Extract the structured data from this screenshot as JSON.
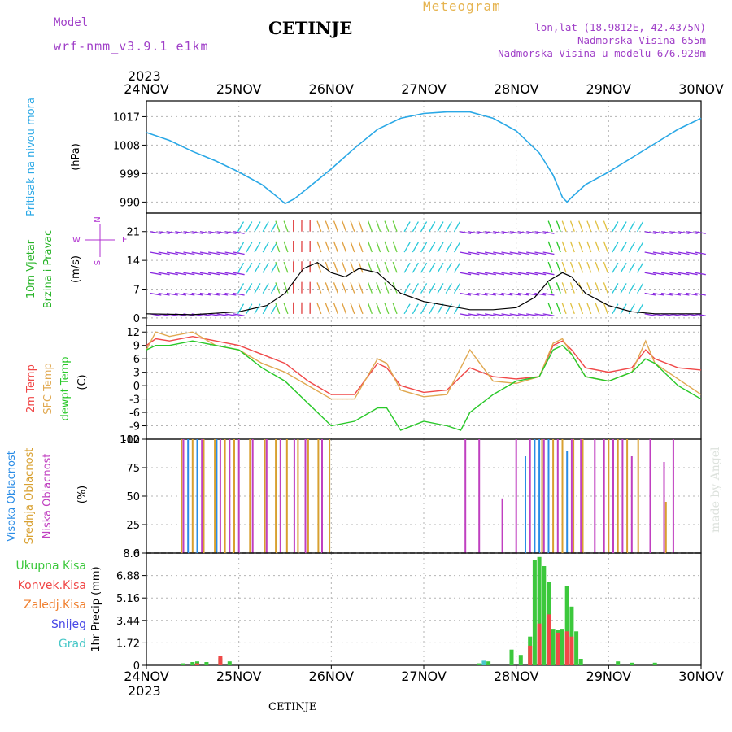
{
  "header": {
    "model_label": "Model",
    "model_run": "wrf-nmm_v3.9.1  e1km",
    "station": "CETINJE",
    "product": "Meteogram",
    "location": "lon,lat (18.9812E, 42.4375N)",
    "altitude": "Nadmorska Visina 655m",
    "model_altitude": "Nadmorska Visina u modelu 676.928m"
  },
  "footer": {
    "station": "CETINJE"
  },
  "credit": "made by Angel",
  "colors": {
    "pressure": "#2aa8e6",
    "temp2m": "#f04848",
    "sfc_temp": "#e0a850",
    "dewpt": "#28c828",
    "high_cloud": "#2a8ce6",
    "mid_cloud": "#d8a030",
    "low_cloud": "#c040c0",
    "total_precip": "#3cc83c",
    "conv_precip": "#f04848",
    "freezing": "#f08030",
    "snow": "#4848e6",
    "grad": "#48c8c8",
    "wind_label": "#28b428",
    "wind_rose": "#b030d0"
  },
  "chart_data": [
    {
      "type": "line",
      "title": "Pritisak na nivou mora",
      "ylabel": "(hPa)",
      "x_axis": {
        "year": "2023",
        "ticks": [
          "24NOV",
          "25NOV",
          "26NOV",
          "27NOV",
          "28NOV",
          "29NOV",
          "30NOV"
        ],
        "range": [
          0,
          6
        ]
      },
      "yticks": [
        990,
        999,
        1008,
        1017
      ],
      "ylim": [
        986.5,
        1022
      ],
      "grid": true,
      "series": [
        {
          "name": "Pritisak na nivou mora",
          "x": [
            0,
            0.25,
            0.5,
            0.75,
            1,
            1.25,
            1.4,
            1.5,
            1.6,
            1.75,
            2,
            2.25,
            2.5,
            2.75,
            3,
            3.25,
            3.5,
            3.75,
            4,
            4.25,
            4.4,
            4.5,
            4.55,
            4.6,
            4.75,
            5,
            5.25,
            5.5,
            5.75,
            6
          ],
          "values": [
            1012,
            1009.5,
            1006,
            1003,
            999.5,
            995.5,
            992,
            989.5,
            991,
            994.5,
            1000.5,
            1007,
            1013,
            1016.5,
            1018,
            1018.5,
            1018.5,
            1016.5,
            1012.5,
            1005.5,
            998.5,
            991.5,
            990,
            991.5,
            995.5,
            999.5,
            1004,
            1008.5,
            1013,
            1016.5
          ]
        }
      ]
    },
    {
      "type": "line",
      "title": "10m Vjetar Brzina i Pravac",
      "ylabel": "(m/s)",
      "wind_rose": {
        "n": "N",
        "s": "S",
        "e": "E",
        "w": "W"
      },
      "yticks": [
        0,
        7,
        14,
        21
      ],
      "ylim": [
        -1.8,
        25.5
      ],
      "series": [
        {
          "name": "Brzina",
          "x": [
            0,
            0.5,
            1,
            1.3,
            1.5,
            1.7,
            1.85,
            2,
            2.15,
            2.3,
            2.5,
            2.75,
            3,
            3.25,
            3.5,
            3.75,
            4,
            4.2,
            4.35,
            4.5,
            4.6,
            4.75,
            5,
            5.25,
            5.5,
            6
          ],
          "values": [
            1,
            0.8,
            1.5,
            3,
            6,
            12,
            13.5,
            11,
            10,
            12,
            11,
            6,
            4,
            3,
            2,
            2,
            2.5,
            5,
            9,
            11,
            10,
            6,
            3,
            1.5,
            1,
            1
          ]
        }
      ]
    },
    {
      "type": "line",
      "ylabel": "(C)",
      "yticks": [
        -12,
        -9,
        -6,
        -3,
        0,
        3,
        6,
        9,
        12
      ],
      "ylim": [
        -12,
        13.5
      ],
      "series": [
        {
          "name": "2m Temp",
          "x": [
            0,
            0.1,
            0.25,
            0.5,
            0.75,
            1,
            1.25,
            1.5,
            1.75,
            2,
            2.25,
            2.5,
            2.6,
            2.75,
            3,
            3.25,
            3.4,
            3.5,
            3.75,
            4,
            4.25,
            4.4,
            4.5,
            4.6,
            4.75,
            5,
            5.25,
            5.4,
            5.5,
            5.75,
            6
          ],
          "values": [
            9,
            10.5,
            10,
            11,
            10,
            9,
            7,
            5,
            1,
            -2,
            -2,
            5,
            4,
            0,
            -1.5,
            -1,
            2,
            4,
            2,
            1.5,
            2,
            9,
            10,
            8,
            4,
            3,
            4,
            8,
            6,
            4,
            3.5
          ]
        },
        {
          "name": "SFC Temp",
          "x": [
            0,
            0.1,
            0.25,
            0.5,
            0.75,
            1,
            1.25,
            1.5,
            1.75,
            2,
            2.25,
            2.5,
            2.6,
            2.75,
            3,
            3.25,
            3.4,
            3.5,
            3.75,
            4,
            4.25,
            4.4,
            4.5,
            4.6,
            4.75,
            5,
            5.25,
            5.4,
            5.5,
            5.75,
            6
          ],
          "values": [
            8,
            12,
            11,
            12,
            9,
            8,
            5,
            3,
            0,
            -3,
            -3,
            6,
            5,
            -1,
            -2.5,
            -2,
            4,
            8,
            1,
            0.5,
            2,
            9.5,
            10.5,
            7,
            2,
            1,
            3,
            10,
            5,
            1.5,
            -2
          ]
        },
        {
          "name": "dewpt Temp",
          "x": [
            0,
            0.1,
            0.25,
            0.5,
            0.75,
            1,
            1.25,
            1.5,
            1.75,
            2,
            2.25,
            2.5,
            2.6,
            2.75,
            3,
            3.25,
            3.4,
            3.5,
            3.75,
            4,
            4.25,
            4.4,
            4.5,
            4.6,
            4.75,
            5,
            5.25,
            5.4,
            5.5,
            5.75,
            6
          ],
          "values": [
            8,
            9,
            9,
            10,
            9,
            8,
            4,
            1,
            -4,
            -9,
            -8,
            -5,
            -5,
            -10,
            -8,
            -9,
            -10,
            -6,
            -2,
            1,
            2,
            8,
            9,
            7,
            2,
            1,
            3,
            6,
            5,
            0,
            -3
          ]
        }
      ]
    },
    {
      "type": "bar",
      "ylabel": "(%)",
      "yticks": [
        0,
        25,
        50,
        75,
        100
      ],
      "ylim": [
        0,
        100
      ],
      "series": [
        {
          "name": "Visoka Oblacnost",
          "x": [
            0.45,
            0.55,
            0.76,
            4.1,
            4.2,
            4.25,
            4.35,
            4.55
          ],
          "values": [
            100,
            100,
            100,
            85,
            100,
            100,
            100,
            90
          ]
        },
        {
          "name": "Srednja Oblacnost",
          "x": [
            0.38,
            0.5,
            0.62,
            0.74,
            0.85,
            0.95,
            1.12,
            1.28,
            1.4,
            1.52,
            1.64,
            1.75,
            1.86,
            1.98,
            4.28,
            4.4,
            4.5,
            4.62,
            4.72,
            5.0,
            5.1,
            5.2,
            5.32,
            5.62
          ],
          "values": [
            100,
            100,
            100,
            100,
            100,
            100,
            100,
            100,
            100,
            100,
            100,
            100,
            100,
            100,
            100,
            100,
            100,
            100,
            100,
            100,
            100,
            100,
            100,
            45
          ]
        },
        {
          "name": "Niska Oblacnost",
          "x": [
            0.4,
            0.6,
            0.8,
            0.9,
            1.0,
            1.15,
            1.3,
            1.45,
            1.6,
            1.72,
            1.9,
            3.45,
            3.6,
            3.85,
            4.0,
            4.15,
            4.3,
            4.45,
            4.6,
            4.7,
            4.85,
            4.95,
            5.05,
            5.15,
            5.25,
            5.45,
            5.6,
            5.7
          ],
          "values": [
            100,
            100,
            100,
            100,
            100,
            100,
            100,
            100,
            100,
            100,
            100,
            100,
            100,
            48,
            100,
            100,
            100,
            100,
            100,
            100,
            100,
            100,
            100,
            100,
            85,
            100,
            80,
            100
          ]
        }
      ]
    },
    {
      "type": "bar",
      "ylabel": "1hr Precip (mm)",
      "yticks": [
        0,
        1.72,
        3.44,
        5.16,
        6.88,
        8.6
      ],
      "ylim": [
        0,
        8.6
      ],
      "series": [
        {
          "name": "Ukupna Kisa",
          "x": [
            0.4,
            0.5,
            0.55,
            0.65,
            0.8,
            0.9,
            3.6,
            3.7,
            3.95,
            4.05,
            4.15,
            4.2,
            4.25,
            4.3,
            4.35,
            4.4,
            4.45,
            4.5,
            4.55,
            4.6,
            4.65,
            4.7,
            5.1,
            5.25,
            5.5
          ],
          "values": [
            0.15,
            0.25,
            0.3,
            0.25,
            0.55,
            0.3,
            0.15,
            0.3,
            1.2,
            0.8,
            2.2,
            8.1,
            8.3,
            7.6,
            6.4,
            2.8,
            2.7,
            2.8,
            6.1,
            4.5,
            2.6,
            0.5,
            0.3,
            0.2,
            0.2
          ]
        },
        {
          "name": "Konvek.Kisa",
          "x": [
            0.55,
            0.8,
            4.15,
            4.25,
            4.35,
            4.45,
            4.55,
            4.6
          ],
          "values": [
            0.15,
            0.7,
            1.5,
            3.2,
            3.9,
            2.5,
            2.6,
            2.2
          ]
        },
        {
          "name": "Zaledj.Kisa",
          "x": [],
          "values": []
        },
        {
          "name": "Snijeg",
          "x": [],
          "values": []
        },
        {
          "name": "Grad",
          "x": [
            3.65
          ],
          "values": [
            0.35
          ]
        }
      ]
    }
  ]
}
